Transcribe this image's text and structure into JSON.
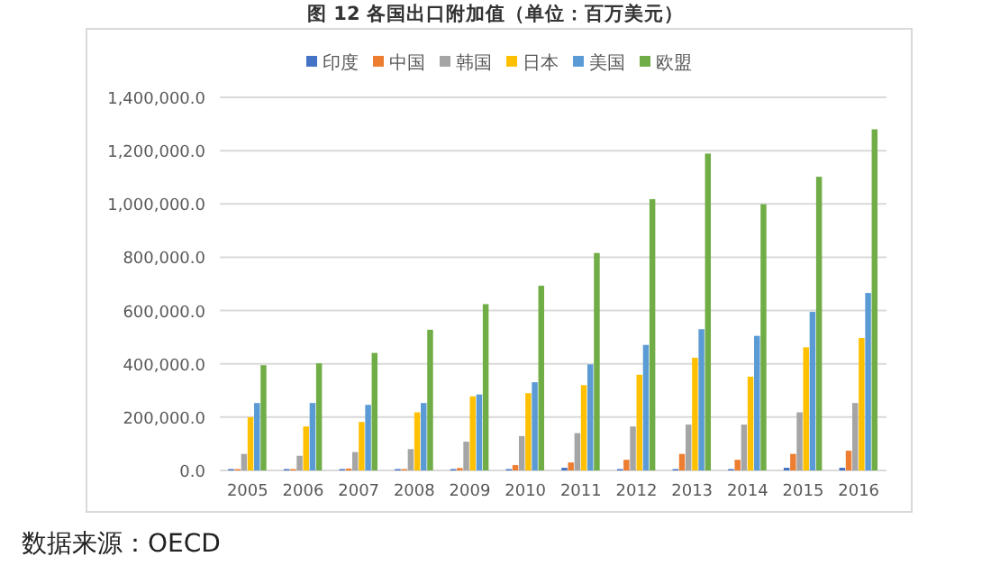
{
  "chart_data": {
    "type": "bar",
    "title": "图 12 各国出口附加值（单位：百万美元）",
    "categories": [
      "2005",
      "2006",
      "2007",
      "2008",
      "2009",
      "2010",
      "2011",
      "2012",
      "2013",
      "2014",
      "2015",
      "2016"
    ],
    "series": [
      {
        "name": "印度",
        "color": "#4472c4",
        "values": [
          5000,
          5000,
          5000,
          5000,
          5000,
          5000,
          10000,
          5000,
          5000,
          5000,
          10000,
          10000
        ]
      },
      {
        "name": "中国",
        "color": "#ed7d31",
        "values": [
          5000,
          5000,
          7000,
          5000,
          9000,
          20000,
          30000,
          40000,
          62000,
          40000,
          62000,
          74000
        ]
      },
      {
        "name": "韩国",
        "color": "#a5a5a5",
        "values": [
          62000,
          55000,
          69000,
          80000,
          108000,
          129000,
          140000,
          165000,
          172000,
          172000,
          218000,
          253000
        ]
      },
      {
        "name": "日本",
        "color": "#ffc000",
        "values": [
          200000,
          165000,
          182000,
          218000,
          278000,
          290000,
          320000,
          359000,
          423000,
          352000,
          462000,
          497000
        ]
      },
      {
        "name": "美国",
        "color": "#5b9bd5",
        "values": [
          253000,
          253000,
          246000,
          253000,
          285000,
          331000,
          398000,
          471000,
          530000,
          505000,
          595000,
          666000
        ]
      },
      {
        "name": "欧盟",
        "color": "#70ad47",
        "values": [
          395000,
          402000,
          441000,
          528000,
          624000,
          693000,
          816000,
          1018000,
          1189000,
          999000,
          1102000,
          1280000
        ]
      }
    ],
    "ylim": [
      0,
      1400000
    ],
    "yticks": [
      {
        "value": 0,
        "label": "0.0"
      },
      {
        "value": 200000,
        "label": "200,000.0"
      },
      {
        "value": 400000,
        "label": "400,000.0"
      },
      {
        "value": 600000,
        "label": "600,000.0"
      },
      {
        "value": 800000,
        "label": "800,000.0"
      },
      {
        "value": 1000000,
        "label": "1,000,000.0"
      },
      {
        "value": 1200000,
        "label": "1,200,000.0"
      },
      {
        "value": 1400000,
        "label": "1,400,000.0"
      }
    ],
    "grid": "y",
    "legend": "top",
    "annotations": [
      "数据来源：OECD"
    ]
  }
}
